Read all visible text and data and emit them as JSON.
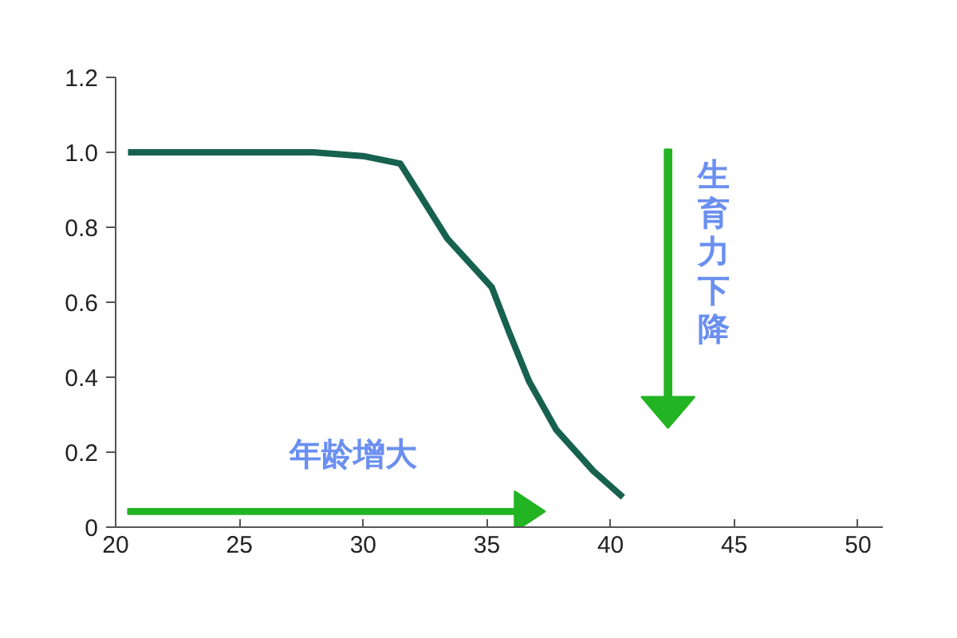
{
  "chart_data": {
    "type": "line",
    "x": [
      20.5,
      24,
      28,
      30,
      31.5,
      33.4,
      35.2,
      35.9,
      36.7,
      37.8,
      39.3,
      40.5
    ],
    "series": [
      {
        "color": "#17614f",
        "values": [
          1.0,
          1.0,
          1.0,
          0.99,
          0.97,
          0.77,
          0.64,
          0.52,
          0.39,
          0.26,
          0.15,
          0.08
        ]
      }
    ],
    "xlim": [
      20,
      51
    ],
    "ylim": [
      0,
      1.2
    ],
    "xticks": [
      20,
      25,
      30,
      35,
      40,
      45,
      50
    ],
    "yticks": [
      0,
      {
        "value": 0.2,
        "label": "0.2"
      },
      {
        "value": 0.4,
        "label": "0.4"
      },
      {
        "value": 0.6,
        "label": "0.6"
      },
      {
        "value": 0.8,
        "label": "0.8"
      },
      {
        "value": 1.0,
        "label": "1.0"
      },
      {
        "value": 1.2,
        "label": "1.2"
      }
    ],
    "grid": false,
    "marker": "none",
    "line_style": "solid",
    "annotations": [
      "年龄增大",
      "生育力下降"
    ]
  }
}
